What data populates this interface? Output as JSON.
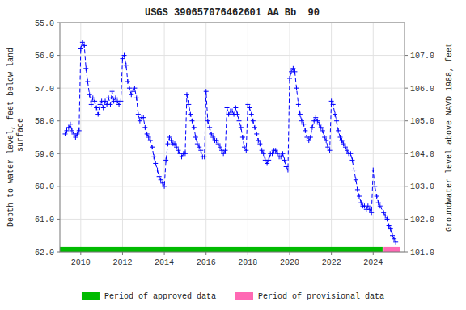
{
  "chart_data": {
    "type": "line",
    "title": "USGS 390657076462601 AA Bb  90",
    "ylabel": "Depth to water level, feet below land\n surface",
    "y2label": "Groundwater level above NAVD 1988, feet",
    "color": "#0000FF",
    "marker": "+",
    "line_style": "dashed",
    "grid": true,
    "legend": "bottom",
    "xlim": [
      2009.0,
      2025.5
    ],
    "xticks": [
      2010,
      2012,
      2014,
      2016,
      2018,
      2020,
      2022,
      2024
    ],
    "ylim": [
      62.0,
      55.0
    ],
    "yticks": [
      {
        "value": 55.0,
        "label": "55.0"
      },
      {
        "value": 56.0,
        "label": "56.0"
      },
      {
        "value": 57.0,
        "label": "57.0"
      },
      {
        "value": 58.0,
        "label": "58.0"
      },
      {
        "value": 59.0,
        "label": "59.0"
      },
      {
        "value": 60.0,
        "label": "60.0"
      },
      {
        "value": 61.0,
        "label": "61.0"
      },
      {
        "value": 62.0,
        "label": "62.0"
      }
    ],
    "y2lim": [
      101.0,
      108.0
    ],
    "y2ticks": [
      {
        "value": 101.0,
        "label": "101.0"
      },
      {
        "value": 102.0,
        "label": "102.0"
      },
      {
        "value": 103.0,
        "label": "103.0"
      },
      {
        "value": 104.0,
        "label": "104.0"
      },
      {
        "value": 105.0,
        "label": "105.0"
      },
      {
        "value": 106.0,
        "label": "106.0"
      },
      {
        "value": 107.0,
        "label": "107.0"
      }
    ],
    "periods": [
      {
        "name": "Period of approved data",
        "color": "#00BB00",
        "start": 2009.0,
        "end": 2024.45,
        "y": 62.0,
        "height": 0.15
      },
      {
        "name": "Period of provisional data",
        "color": "#FF69B4",
        "start": 2024.5,
        "end": 2025.3,
        "y": 62.0,
        "height": 0.15
      }
    ],
    "x": [
      2009.25,
      2009.33,
      2009.42,
      2009.5,
      2009.58,
      2009.67,
      2009.75,
      2009.83,
      2009.92,
      2010.0,
      2010.08,
      2010.17,
      2010.25,
      2010.33,
      2010.42,
      2010.5,
      2010.58,
      2010.67,
      2010.75,
      2010.83,
      2010.92,
      2011.0,
      2011.08,
      2011.17,
      2011.25,
      2011.33,
      2011.42,
      2011.5,
      2011.58,
      2011.67,
      2011.75,
      2011.83,
      2011.92,
      2012.0,
      2012.08,
      2012.17,
      2012.25,
      2012.33,
      2012.42,
      2012.5,
      2012.58,
      2012.67,
      2012.75,
      2012.83,
      2012.92,
      2013.0,
      2013.08,
      2013.17,
      2013.25,
      2013.33,
      2013.42,
      2013.5,
      2013.58,
      2013.67,
      2013.75,
      2013.83,
      2013.92,
      2014.0,
      2014.08,
      2014.17,
      2014.25,
      2014.33,
      2014.42,
      2014.5,
      2014.58,
      2014.67,
      2014.75,
      2014.83,
      2014.92,
      2015.0,
      2015.08,
      2015.17,
      2015.25,
      2015.33,
      2015.42,
      2015.5,
      2015.58,
      2015.67,
      2015.75,
      2015.83,
      2015.92,
      2016.0,
      2016.08,
      2016.17,
      2016.25,
      2016.33,
      2016.42,
      2016.5,
      2016.58,
      2016.67,
      2016.75,
      2016.83,
      2016.92,
      2017.0,
      2017.08,
      2017.17,
      2017.25,
      2017.33,
      2017.42,
      2017.5,
      2017.58,
      2017.67,
      2017.75,
      2017.83,
      2017.92,
      2018.0,
      2018.08,
      2018.17,
      2018.25,
      2018.33,
      2018.42,
      2018.5,
      2018.58,
      2018.67,
      2018.75,
      2018.83,
      2018.92,
      2019.0,
      2019.08,
      2019.17,
      2019.25,
      2019.33,
      2019.42,
      2019.5,
      2019.58,
      2019.67,
      2019.75,
      2019.83,
      2019.92,
      2020.0,
      2020.08,
      2020.17,
      2020.25,
      2020.33,
      2020.42,
      2020.5,
      2020.58,
      2020.67,
      2020.75,
      2020.83,
      2020.92,
      2021.0,
      2021.08,
      2021.17,
      2021.25,
      2021.33,
      2021.42,
      2021.5,
      2021.58,
      2021.67,
      2021.75,
      2021.83,
      2021.92,
      2022.0,
      2022.08,
      2022.17,
      2022.25,
      2022.33,
      2022.42,
      2022.5,
      2022.58,
      2022.67,
      2022.75,
      2022.83,
      2022.92,
      2023.0,
      2023.08,
      2023.17,
      2023.25,
      2023.33,
      2023.42,
      2023.5,
      2023.58,
      2023.67,
      2023.75,
      2023.83,
      2023.92,
      2024.0,
      2024.08,
      2024.17,
      2024.25,
      2024.33,
      2024.5,
      2024.58,
      2024.67,
      2024.75,
      2024.83,
      2024.92,
      2025.0,
      2025.08
    ],
    "values": [
      58.4,
      58.3,
      58.2,
      58.1,
      58.3,
      58.4,
      58.5,
      58.4,
      58.3,
      55.8,
      55.6,
      55.7,
      56.4,
      56.8,
      57.2,
      57.5,
      57.3,
      57.4,
      57.6,
      57.8,
      57.5,
      57.4,
      57.6,
      57.4,
      57.5,
      57.3,
      57.5,
      57.1,
      57.4,
      57.3,
      57.4,
      57.5,
      57.4,
      56.1,
      56.0,
      56.3,
      56.8,
      57.0,
      57.2,
      57.1,
      57.0,
      57.3,
      57.8,
      58.0,
      57.9,
      57.9,
      58.2,
      58.4,
      58.5,
      58.6,
      58.8,
      59.1,
      59.3,
      59.5,
      59.7,
      59.8,
      59.9,
      60.0,
      59.2,
      58.7,
      58.5,
      58.6,
      58.7,
      58.7,
      58.8,
      58.9,
      59.0,
      59.1,
      59.0,
      59.0,
      57.2,
      57.5,
      57.8,
      58.0,
      58.2,
      58.5,
      58.7,
      58.8,
      58.9,
      59.1,
      59.1,
      57.1,
      58.0,
      58.2,
      58.4,
      58.5,
      58.6,
      58.6,
      58.7,
      58.8,
      58.9,
      59.0,
      58.9,
      57.6,
      57.8,
      57.7,
      57.7,
      57.8,
      57.6,
      57.8,
      58.0,
      58.2,
      58.5,
      58.8,
      58.9,
      57.5,
      57.6,
      57.8,
      58.0,
      58.2,
      58.4,
      58.6,
      58.7,
      58.9,
      59.0,
      59.2,
      59.3,
      59.2,
      59.0,
      59.0,
      58.9,
      58.9,
      59.0,
      59.1,
      59.1,
      59.0,
      59.2,
      59.4,
      59.5,
      56.7,
      56.5,
      56.4,
      56.5,
      57.0,
      57.5,
      57.8,
      58.0,
      58.1,
      58.3,
      58.5,
      58.6,
      58.5,
      58.2,
      58.0,
      57.9,
      58.0,
      58.1,
      58.2,
      58.3,
      58.5,
      58.6,
      58.8,
      58.9,
      57.4,
      57.5,
      57.8,
      58.0,
      58.3,
      58.5,
      58.6,
      58.7,
      58.8,
      58.9,
      59.0,
      59.0,
      59.2,
      59.5,
      59.8,
      60.1,
      60.3,
      60.5,
      60.6,
      60.6,
      60.7,
      60.6,
      60.7,
      60.8,
      59.5,
      60.0,
      60.3,
      60.5,
      60.6,
      60.8,
      60.9,
      61.0,
      61.2,
      61.3,
      61.5,
      61.6,
      61.7
    ]
  }
}
